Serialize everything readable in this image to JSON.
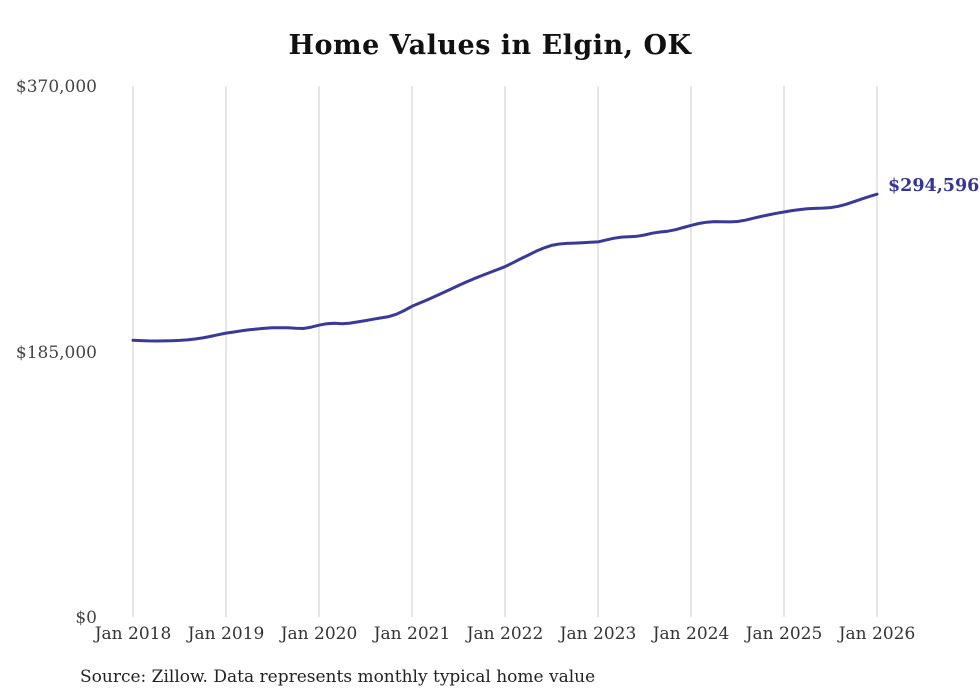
{
  "chart": {
    "title": "Home Values in Elgin, OK",
    "colors": {
      "line": "#39399a",
      "accent_label": "#33339b",
      "grid": "#cccccc",
      "title_text": "#111111",
      "axis_text": "#444444"
    }
  },
  "chart_data": {
    "type": "line",
    "title": "Home Values in Elgin, OK",
    "series_name": "Monthly typical home value",
    "x_start": "2018-01",
    "x_end": "2026-01",
    "frequency": "monthly",
    "x_tick_labels": [
      "Jan 2018",
      "Jan 2019",
      "Jan 2020",
      "Jan 2021",
      "Jan 2022",
      "Jan 2023",
      "Jan 2024",
      "Jan 2025",
      "Jan 2026"
    ],
    "y_tick_labels": [
      "$370,000",
      "$185,000",
      "$0"
    ],
    "y_tick_values": [
      370000,
      185000,
      0
    ],
    "ylim": [
      0,
      370000
    ],
    "grid": "vertical-yearly",
    "legend": "none",
    "final_value": 294596,
    "final_value_label": "$294,596",
    "values": [
      192800,
      192600,
      192400,
      192300,
      192400,
      192500,
      192700,
      193100,
      193700,
      194500,
      195500,
      196700,
      197800,
      198600,
      199400,
      200100,
      200700,
      201200,
      201500,
      201600,
      201500,
      201200,
      201000,
      202000,
      203300,
      204400,
      204700,
      204300,
      204800,
      205600,
      206500,
      207500,
      208400,
      209300,
      211000,
      213600,
      216500,
      218800,
      221100,
      223500,
      226000,
      228500,
      231000,
      233400,
      235700,
      237900,
      240000,
      242100,
      244100,
      246800,
      249500,
      252200,
      254800,
      257100,
      258900,
      259900,
      260300,
      260500,
      260800,
      261100,
      261400,
      262600,
      263900,
      264700,
      265000,
      265300,
      266200,
      267400,
      268300,
      268800,
      269900,
      271400,
      272900,
      274200,
      275100,
      275500,
      275400,
      275300,
      275600,
      276500,
      277800,
      279100,
      280200,
      281300,
      282200,
      283200,
      283900,
      284400,
      284700,
      284900,
      285300,
      286200,
      287600,
      289400,
      291200,
      293000,
      294596
    ]
  },
  "footer": {
    "source": "Source: Zillow. Data represents monthly typical home value"
  }
}
